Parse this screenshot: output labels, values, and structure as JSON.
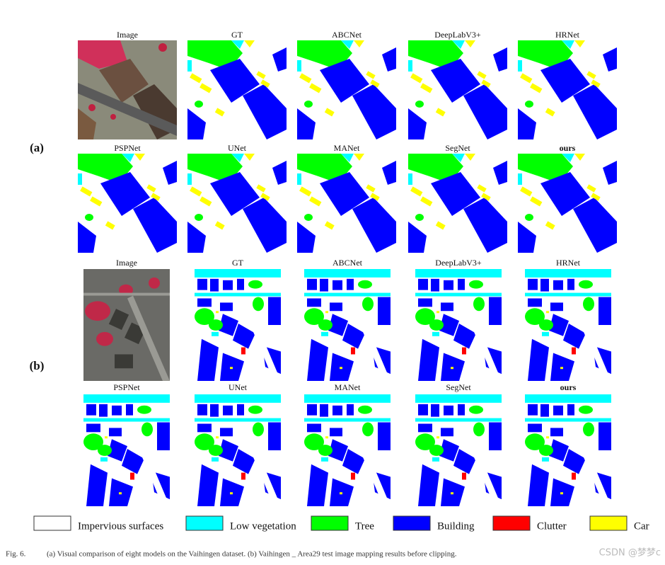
{
  "figure": {
    "panels": [
      {
        "label": "(a)",
        "rows": [
          [
            "Image",
            "GT",
            "ABCNet",
            "DeepLabV3+",
            "HRNet"
          ],
          [
            "PSPNet",
            "UNet",
            "MANet",
            "SegNet",
            "ours"
          ]
        ]
      },
      {
        "label": "(b)",
        "rows": [
          [
            "Image",
            "GT",
            "ABCNet",
            "DeepLabV3+",
            "HRNet"
          ],
          [
            "PSPNet",
            "UNet",
            "MANet",
            "SegNet",
            "ours"
          ]
        ]
      }
    ],
    "legend": [
      {
        "label": "Impervious surfaces",
        "color": "#ffffff"
      },
      {
        "label": "Low vegetation",
        "color": "#00ffff"
      },
      {
        "label": "Tree",
        "color": "#00ff00"
      },
      {
        "label": "Building",
        "color": "#0000ff"
      },
      {
        "label": "Clutter",
        "color": "#ff0000"
      },
      {
        "label": "Car",
        "color": "#ffff00"
      }
    ],
    "caption_label": "Fig. 6.",
    "caption": "(a) Visual comparison of eight models on the Vaihingen dataset. (b) Vaihingen _ Area29 test image mapping results before clipping.",
    "watermark": "CSDN @梦梦c"
  }
}
